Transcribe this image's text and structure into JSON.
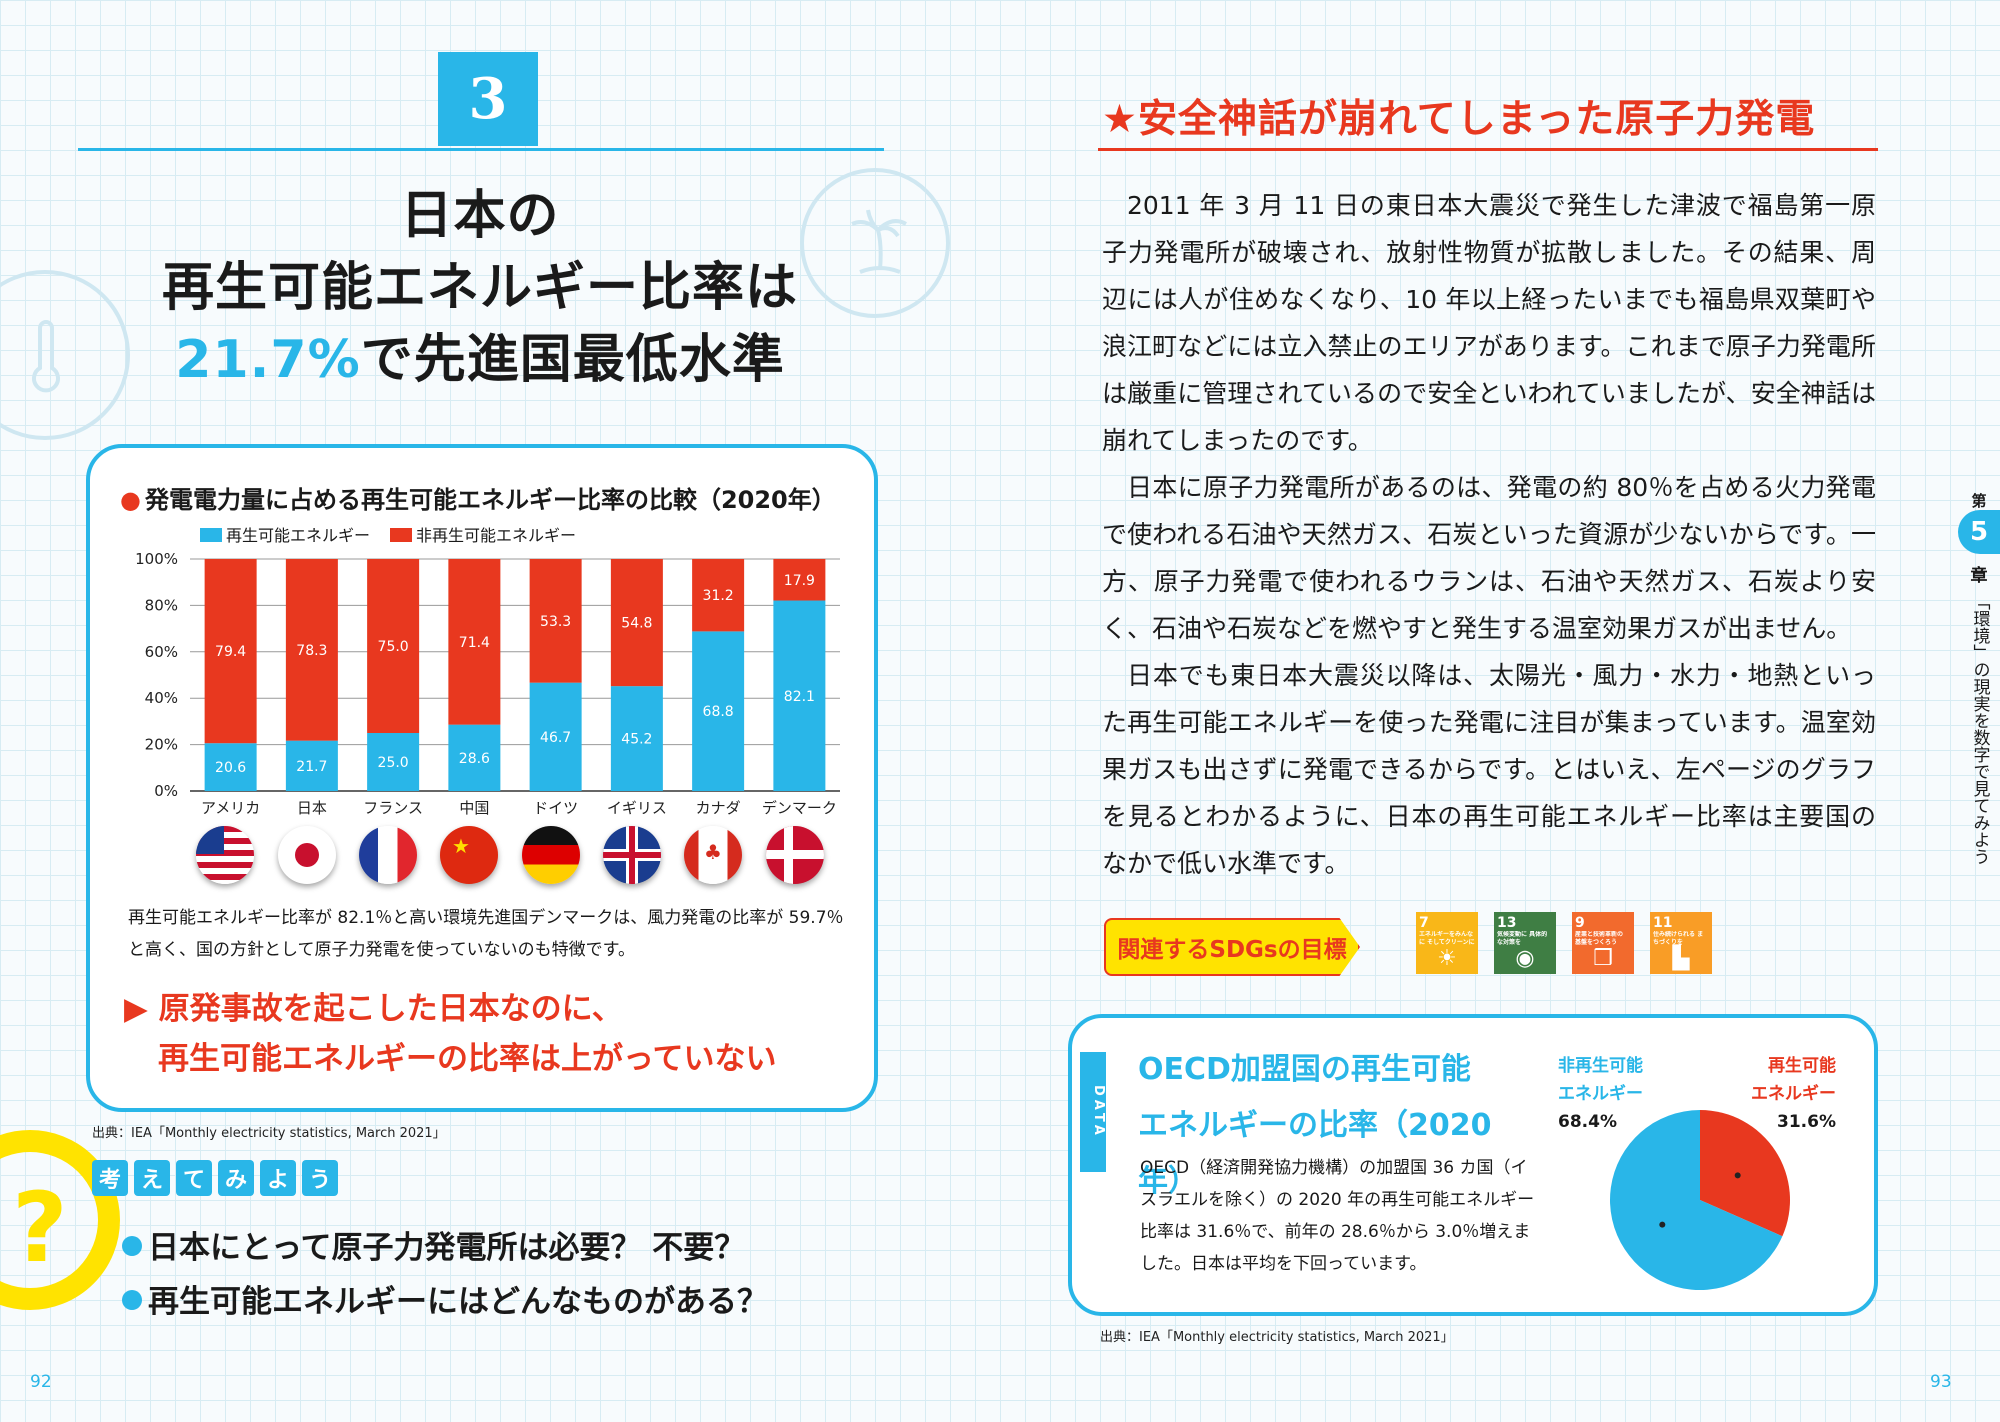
{
  "left_page": {
    "section_number": "3",
    "headline": {
      "line1": "日本の",
      "line2": "再生可能エネルギー比率は",
      "line3_highlight": "21.7%",
      "line3_rest": "で先進国最低水準"
    },
    "chart_title": "発電電力量に占める再生可能エネルギー比率の比較（2020年）",
    "note": "再生可能エネルギー比率が 82.1％と高い環境先進国デンマークは、風力発電の比率が 59.7％と高く、国の方針として原子力発電を使っていないのも特徴です。",
    "callout_line1": "原発事故を起こした日本なのに、",
    "callout_line2": "再生可能エネルギーの比率は上がっていない",
    "source": "出典：IEA「Monthly electricity statistics, March 2021」",
    "think": {
      "chars": [
        "考",
        "え",
        "て",
        "み",
        "よ",
        "う"
      ],
      "q1": "日本にとって原子力発電所は必要？ 不要？",
      "q2": "再生可能エネルギーにはどんなものがある？"
    },
    "page_number": "92"
  },
  "chart_data": [
    {
      "type": "bar",
      "stacked": true,
      "title": "発電電力量に占める再生可能エネルギー比率の比較（2020年）",
      "categories": [
        "アメリカ",
        "日本",
        "フランス",
        "中国",
        "ドイツ",
        "イギリス",
        "カナダ",
        "デンマーク"
      ],
      "series": [
        {
          "name": "再生可能エネルギー",
          "color": "#29b6e8",
          "values": [
            20.6,
            21.7,
            25.0,
            28.6,
            46.7,
            45.2,
            68.8,
            82.1
          ]
        },
        {
          "name": "非再生可能エネルギー",
          "color": "#e8381f",
          "values": [
            79.4,
            78.3,
            75.0,
            71.4,
            53.3,
            54.8,
            31.2,
            17.9
          ]
        }
      ],
      "yticks": [
        "0%",
        "20%",
        "40%",
        "60%",
        "80%",
        "100%"
      ],
      "ylim": [
        0,
        100
      ]
    },
    {
      "type": "pie",
      "title": "OECD加盟国の再生可能エネルギーの比率（2020年）",
      "slices": [
        {
          "name": "再生可能エネルギー",
          "value": 31.6,
          "color": "#e8381f",
          "label": "31.6%"
        },
        {
          "name": "非再生可能エネルギー",
          "value": 68.4,
          "color": "#29b6e8",
          "label": "68.4%"
        }
      ]
    }
  ],
  "right_page": {
    "section_title": "★安全神話が崩れてしまった原子力発電",
    "paragraphs": [
      "2011 年 3 月 11 日の東日本大震災で発生した津波で福島第一原子力発電所が破壊され、放射性物質が拡散しました。その結果、周辺には人が住めなくなり、10 年以上経ったいまでも福島県双葉町や浪江町などには立入禁止のエリアがあります。これまで原子力発電所は厳重に管理されているので安全といわれていましたが、安全神話は崩れてしまったのです。",
      "日本に原子力発電所があるのは、発電の約 80％を占める火力発電で使われる石油や天然ガス、石炭といった資源が少ないからです。一方、原子力発電で使われるウランは、石油や天然ガス、石炭より安く、石油や石炭などを燃やすと発生する温室効果ガスが出ません。",
      "日本でも東日本大震災以降は、太陽光・風力・水力・地熱といった再生可能エネルギーを使った発電に注目が集まっています。温室効果ガスも出さずに発電できるからです。とはいえ、左ページのグラフを見るとわかるように、日本の再生可能エネルギー比率は主要国のなかで低い水準です。"
    ],
    "chapter": {
      "top": "第",
      "number": "5",
      "bottom": "章",
      "title": "「環境」の現実を数字で見てみよう"
    },
    "sdgs_label": "関連するSDGsの目標",
    "sdgs": [
      {
        "num": "7",
        "text": "エネルギーをみんなに そしてクリーンに",
        "color": "#f9b718"
      },
      {
        "num": "13",
        "text": "気候変動に 具体的な対策を",
        "color": "#3f7e44"
      },
      {
        "num": "9",
        "text": "産業と技術革新の 基盤をつくろう",
        "color": "#f26a2d"
      },
      {
        "num": "11",
        "text": "住み続けられる まちづくりを",
        "color": "#f99d26"
      }
    ],
    "data_box": {
      "tab": "DATA",
      "title_line1": "OECD加盟国の再生可能",
      "title_line2": "エネルギーの比率（2020年）",
      "text": "OECD（経済開発協力機構）の加盟国 36 カ国（イスラエルを除く）の 2020 年の再生可能エネルギー比率は 31.6％で、前年の 28.6％から 3.0％増えました。日本は平均を下回っています。",
      "label_non_renewable_1": "非再生可能",
      "label_non_renewable_2": "エネルギー",
      "label_renewable_1": "再生可能",
      "label_renewable_2": "エネルギー",
      "value_non_renewable": "68.4%",
      "value_renewable": "31.6%"
    },
    "source": "出典：IEA「Monthly electricity statistics, March 2021」",
    "page_number": "93"
  }
}
